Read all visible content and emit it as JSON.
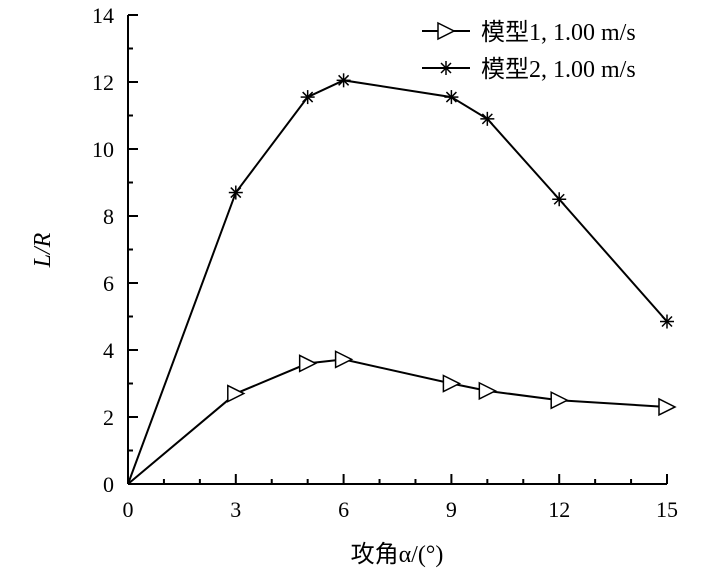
{
  "chart_data": {
    "type": "line",
    "xlabel": "攻角α/(°)",
    "ylabel": "L/R",
    "xlim": [
      0,
      15
    ],
    "ylim": [
      0,
      14
    ],
    "x_ticks": [
      0,
      3,
      6,
      9,
      12,
      15
    ],
    "y_ticks": [
      0,
      2,
      4,
      6,
      8,
      10,
      12,
      14
    ],
    "grid": false,
    "legend_position": "top-right",
    "series": [
      {
        "name": "模型1, 1.00 m/s",
        "marker": "triangle-right-open",
        "color": "#000000",
        "x": [
          0,
          3,
          5,
          6,
          9,
          10,
          12,
          15
        ],
        "y": [
          0,
          2.7,
          3.6,
          3.72,
          3.0,
          2.78,
          2.5,
          2.3
        ]
      },
      {
        "name": "模型2, 1.00 m/s",
        "marker": "asterisk",
        "color": "#000000",
        "x": [
          0,
          3,
          5,
          6,
          9,
          10,
          12,
          15
        ],
        "y": [
          0,
          8.7,
          11.55,
          12.05,
          11.55,
          10.9,
          8.5,
          4.85
        ]
      }
    ]
  }
}
